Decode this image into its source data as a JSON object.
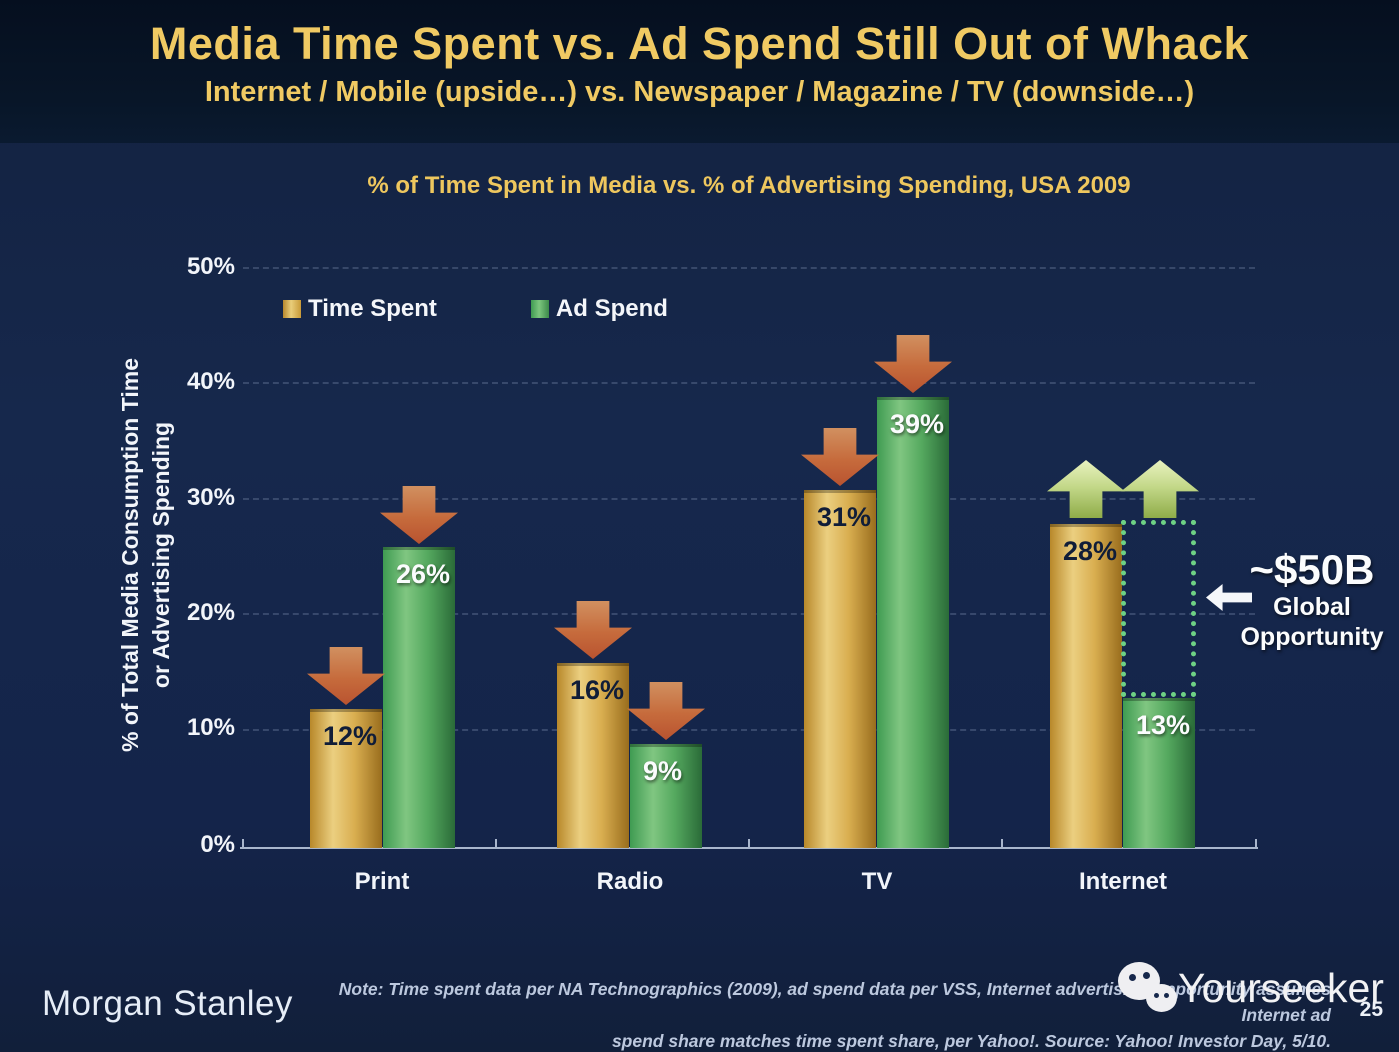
{
  "slide": {
    "title": "Media Time Spent vs. Ad Spend Still Out of Whack",
    "subtitle": "Internet / Mobile (upside…) vs. Newspaper / Magazine / TV (downside…)",
    "brand": "Morgan Stanley",
    "watermark": "Yourseeker",
    "page_number": "25",
    "note_line1": "Note: Time spent data per NA Technographics (2009), ad spend data per VSS, Internet advertising opportunity assumes Internet ad",
    "note_line2": "spend share matches time spent share, per Yahoo!. Source: Yahoo! Investor Day, 5/10."
  },
  "chart_data": {
    "type": "bar",
    "title": "% of Time Spent in Media vs. % of Advertising Spending, USA 2009",
    "categories": [
      "Print",
      "Radio",
      "TV",
      "Internet"
    ],
    "series": [
      {
        "name": "Time Spent",
        "color": "#d8a940",
        "values": [
          12,
          16,
          31,
          28
        ],
        "labels": [
          "12%",
          "16%",
          "31%",
          "28%"
        ]
      },
      {
        "name": "Ad Spend",
        "color": "#4da25d",
        "values": [
          26,
          9,
          39,
          13
        ],
        "labels": [
          "26%",
          "9%",
          "39%",
          "13%"
        ]
      }
    ],
    "ylabel_line1": "% of Total Media Consumption Time",
    "ylabel_line2": "or Advertising Spending",
    "ylim": [
      0,
      50
    ],
    "yticks": [
      "50%",
      "40%",
      "30%",
      "20%",
      "10%",
      "0%"
    ],
    "grid": "horizontal dashed",
    "legend_position": "top-left inside plot",
    "annotations": {
      "down_arrows": [
        "Print/Time Spent",
        "Print/Ad Spend",
        "Radio/Time Spent",
        "Radio/Ad Spend",
        "TV/Time Spent",
        "TV/Ad Spend"
      ],
      "up_arrows": [
        "Internet/Time Spent",
        "Internet/Ad Spend"
      ],
      "opportunity": {
        "value": "~$50B",
        "line2": "Global",
        "line3": "Opportunity",
        "marker": "dotted rectangle from Internet Ad Spend 13% up to Time Spent 28%"
      }
    }
  }
}
